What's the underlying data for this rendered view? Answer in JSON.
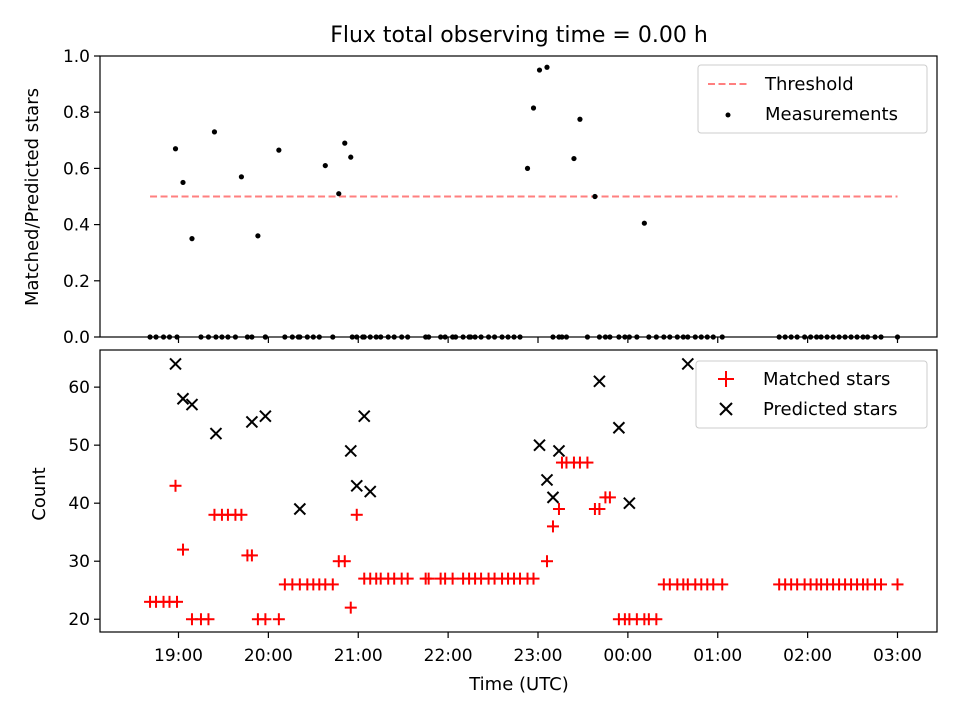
{
  "title": "Flux total observing time = 0.00 h",
  "chart_data": [
    {
      "type": "scatter",
      "ylabel": "Matched/Predicted stars",
      "ylim": [
        0,
        1.0
      ],
      "yticks": [
        "0.0",
        "0.2",
        "0.4",
        "0.6",
        "0.8",
        "1.0"
      ],
      "legend_position": "top-right",
      "threshold": {
        "name": "Threshold",
        "value": 0.5,
        "x_start": "18:41",
        "x_end": "03:00",
        "color": "#ff7f7f"
      },
      "measurements": {
        "name": "Measurements",
        "color": "#000000",
        "x": [
          "18:41",
          "18:45",
          "18:50",
          "18:54",
          "18:59",
          "18:58",
          "19:03",
          "19:09",
          "19:15",
          "19:20",
          "19:24",
          "19:25",
          "19:29",
          "19:33",
          "19:38",
          "19:42",
          "19:46",
          "19:49",
          "19:53",
          "19:58",
          "19:58",
          "20:07",
          "20:11",
          "20:16",
          "20:21",
          "20:20",
          "20:26",
          "20:30",
          "20:34",
          "20:38",
          "20:43",
          "20:47",
          "20:51",
          "20:56",
          "20:55",
          "20:59",
          "21:04",
          "21:03",
          "21:08",
          "21:12",
          "21:15",
          "21:20",
          "21:24",
          "21:29",
          "21:33",
          "21:45",
          "21:47",
          "21:55",
          "21:58",
          "22:03",
          "22:05",
          "22:10",
          "22:14",
          "22:15",
          "22:18",
          "22:22",
          "22:27",
          "22:31",
          "22:36",
          "22:40",
          "22:44",
          "22:48",
          "22:53",
          "22:57",
          "23:01",
          "23:06",
          "23:10",
          "23:14",
          "23:16",
          "23:19",
          "23:24",
          "23:28",
          "23:33",
          "23:38",
          "23:41",
          "23:45",
          "23:48",
          "23:54",
          "23:58",
          "00:01",
          "00:06",
          "00:11",
          "00:14",
          "00:19",
          "00:24",
          "00:28",
          "00:33",
          "00:37",
          "00:40",
          "00:45",
          "00:49",
          "00:53",
          "00:57",
          "01:03",
          "01:41",
          "01:45",
          "01:49",
          "01:53",
          "01:58",
          "02:02",
          "02:06",
          "02:09",
          "02:13",
          "02:17",
          "02:21",
          "02:25",
          "02:29",
          "02:33",
          "02:37",
          "02:40",
          "02:45",
          "02:49",
          "03:00"
        ],
        "y": [
          0,
          0,
          0,
          0,
          0,
          0.67,
          0.55,
          0.35,
          0,
          0,
          0.73,
          0,
          0,
          0,
          0,
          0.57,
          0,
          0,
          0.36,
          0,
          0,
          0.665,
          0,
          0,
          0,
          0,
          0,
          0,
          0,
          0.61,
          0,
          0.51,
          0.69,
          0,
          0.64,
          0,
          0,
          0,
          0,
          0,
          0,
          0,
          0,
          0,
          0,
          0,
          0,
          0,
          0,
          0,
          0,
          0,
          0,
          0,
          0,
          0,
          0,
          0,
          0,
          0,
          0,
          0,
          0.6,
          0.815,
          0.95,
          0.96,
          0,
          0,
          0,
          0,
          0.635,
          0.775,
          0,
          0.5,
          0,
          0,
          0,
          0,
          0,
          0,
          0,
          0.405,
          0,
          0,
          0,
          0,
          0,
          0,
          0,
          0,
          0,
          0,
          0,
          0,
          0,
          0,
          0,
          0,
          0,
          0,
          0,
          0,
          0,
          0,
          0,
          0,
          0,
          0,
          0,
          0,
          0,
          0,
          0
        ]
      }
    },
    {
      "type": "scatter",
      "xlabel": "Time (UTC)",
      "ylabel": "Count",
      "ylim": [
        17.8,
        66.4
      ],
      "yticks": [
        "20",
        "30",
        "40",
        "50",
        "60"
      ],
      "xticks": [
        "19:00",
        "20:00",
        "21:00",
        "22:00",
        "23:00",
        "00:00",
        "01:00",
        "02:00",
        "03:00"
      ],
      "legend_position": "top-right",
      "matched": {
        "name": "Matched stars",
        "color": "#ff0000",
        "marker": "+",
        "x": [
          "18:41",
          "18:45",
          "18:50",
          "18:54",
          "18:59",
          "18:58",
          "19:03",
          "19:09",
          "19:15",
          "19:20",
          "19:24",
          "19:29",
          "19:33",
          "19:38",
          "19:42",
          "19:46",
          "19:49",
          "19:53",
          "19:58",
          "20:07",
          "20:11",
          "20:16",
          "20:21",
          "20:26",
          "20:30",
          "20:34",
          "20:38",
          "20:43",
          "20:47",
          "20:51",
          "20:55",
          "20:59",
          "21:04",
          "21:08",
          "21:12",
          "21:15",
          "21:20",
          "21:24",
          "21:29",
          "21:33",
          "21:45",
          "21:47",
          "21:55",
          "21:58",
          "22:03",
          "22:10",
          "22:14",
          "22:18",
          "22:22",
          "22:27",
          "22:31",
          "22:36",
          "22:40",
          "22:44",
          "22:48",
          "22:53",
          "22:57",
          "23:06",
          "23:10",
          "23:14",
          "23:16",
          "23:19",
          "23:24",
          "23:28",
          "23:33",
          "23:38",
          "23:41",
          "23:45",
          "23:48",
          "23:54",
          "23:58",
          "00:01",
          "00:06",
          "00:11",
          "00:14",
          "00:19",
          "00:24",
          "00:28",
          "00:33",
          "00:37",
          "00:40",
          "00:45",
          "00:49",
          "00:53",
          "00:57",
          "01:03",
          "01:41",
          "01:45",
          "01:49",
          "01:53",
          "01:58",
          "02:02",
          "02:06",
          "02:09",
          "02:13",
          "02:17",
          "02:21",
          "02:25",
          "02:29",
          "02:33",
          "02:37",
          "02:40",
          "02:45",
          "02:49",
          "03:00"
        ],
        "y": [
          23,
          23,
          23,
          23,
          23,
          43,
          32,
          20,
          20,
          20,
          38,
          38,
          38,
          38,
          38,
          31,
          31,
          20,
          20,
          20,
          26,
          26,
          26,
          26,
          26,
          26,
          26,
          26,
          30,
          30,
          22,
          38,
          27,
          27,
          27,
          27,
          27,
          27,
          27,
          27,
          27,
          27,
          27,
          27,
          27,
          27,
          27,
          27,
          27,
          27,
          27,
          27,
          27,
          27,
          27,
          27,
          27,
          30,
          36,
          39,
          47,
          47,
          47,
          47,
          47,
          39,
          39,
          41,
          41,
          20,
          20,
          20,
          20,
          20,
          20,
          20,
          26,
          26,
          26,
          26,
          26,
          26,
          26,
          26,
          26,
          26,
          26,
          26,
          26,
          26,
          26,
          26,
          26,
          26,
          26,
          26,
          26,
          26,
          26,
          26,
          26,
          26,
          26,
          26,
          26
        ]
      },
      "predicted": {
        "name": "Predicted stars",
        "color": "#000000",
        "marker": "x",
        "x": [
          "18:58",
          "19:03",
          "19:09",
          "19:25",
          "19:49",
          "19:58",
          "20:21",
          "20:55",
          "20:59",
          "21:04",
          "21:08",
          "23:01",
          "23:06",
          "23:10",
          "23:14",
          "23:41",
          "23:54",
          "00:01",
          "00:40"
        ],
        "y": [
          64,
          58,
          57,
          52,
          54,
          55,
          39,
          49,
          43,
          55,
          42,
          50,
          44,
          41,
          49,
          61,
          53,
          40,
          64
        ]
      }
    }
  ]
}
